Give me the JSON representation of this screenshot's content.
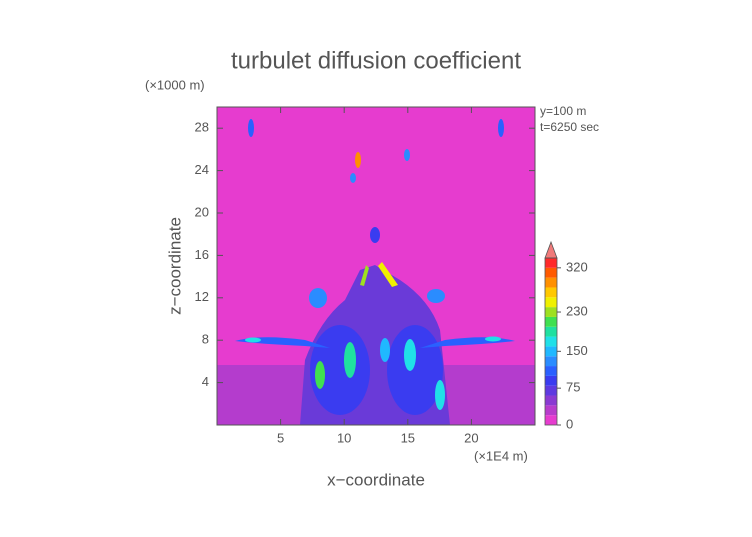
{
  "chart_data": {
    "type": "contour",
    "title": "turbulet diffusion coefficient",
    "x_label": "x−coordinate",
    "y_label": "z−coordinate",
    "x_unit": "(×1E4 m)",
    "y_unit": "(×1000 m)",
    "annotations": [
      "y=100 m",
      "t=6250 sec"
    ],
    "xlim": [
      0,
      25
    ],
    "xticks": [
      5,
      10,
      15,
      20
    ],
    "ylim": [
      0,
      30
    ],
    "yticks": [
      4,
      8,
      12,
      16,
      20,
      24,
      28
    ],
    "background_color": "#e63ccf",
    "colorbar": {
      "levels": [
        0,
        20,
        40,
        60,
        80,
        100,
        120,
        140,
        160,
        180,
        200,
        220,
        240,
        260,
        280,
        300,
        320,
        340
      ],
      "colors": [
        "#e63ccf",
        "#b83ccc",
        "#8a3ad2",
        "#5e3ae0",
        "#3a3cf0",
        "#2a60ff",
        "#2a8cff",
        "#20b8ff",
        "#20e0e8",
        "#20e0a0",
        "#40e050",
        "#9ee020",
        "#f0f000",
        "#ffc800",
        "#ff9000",
        "#ff5a00",
        "#ff2a2a"
      ],
      "extend_color": "#f07a7a",
      "ticks": [
        0,
        75,
        150,
        230,
        320
      ]
    }
  }
}
